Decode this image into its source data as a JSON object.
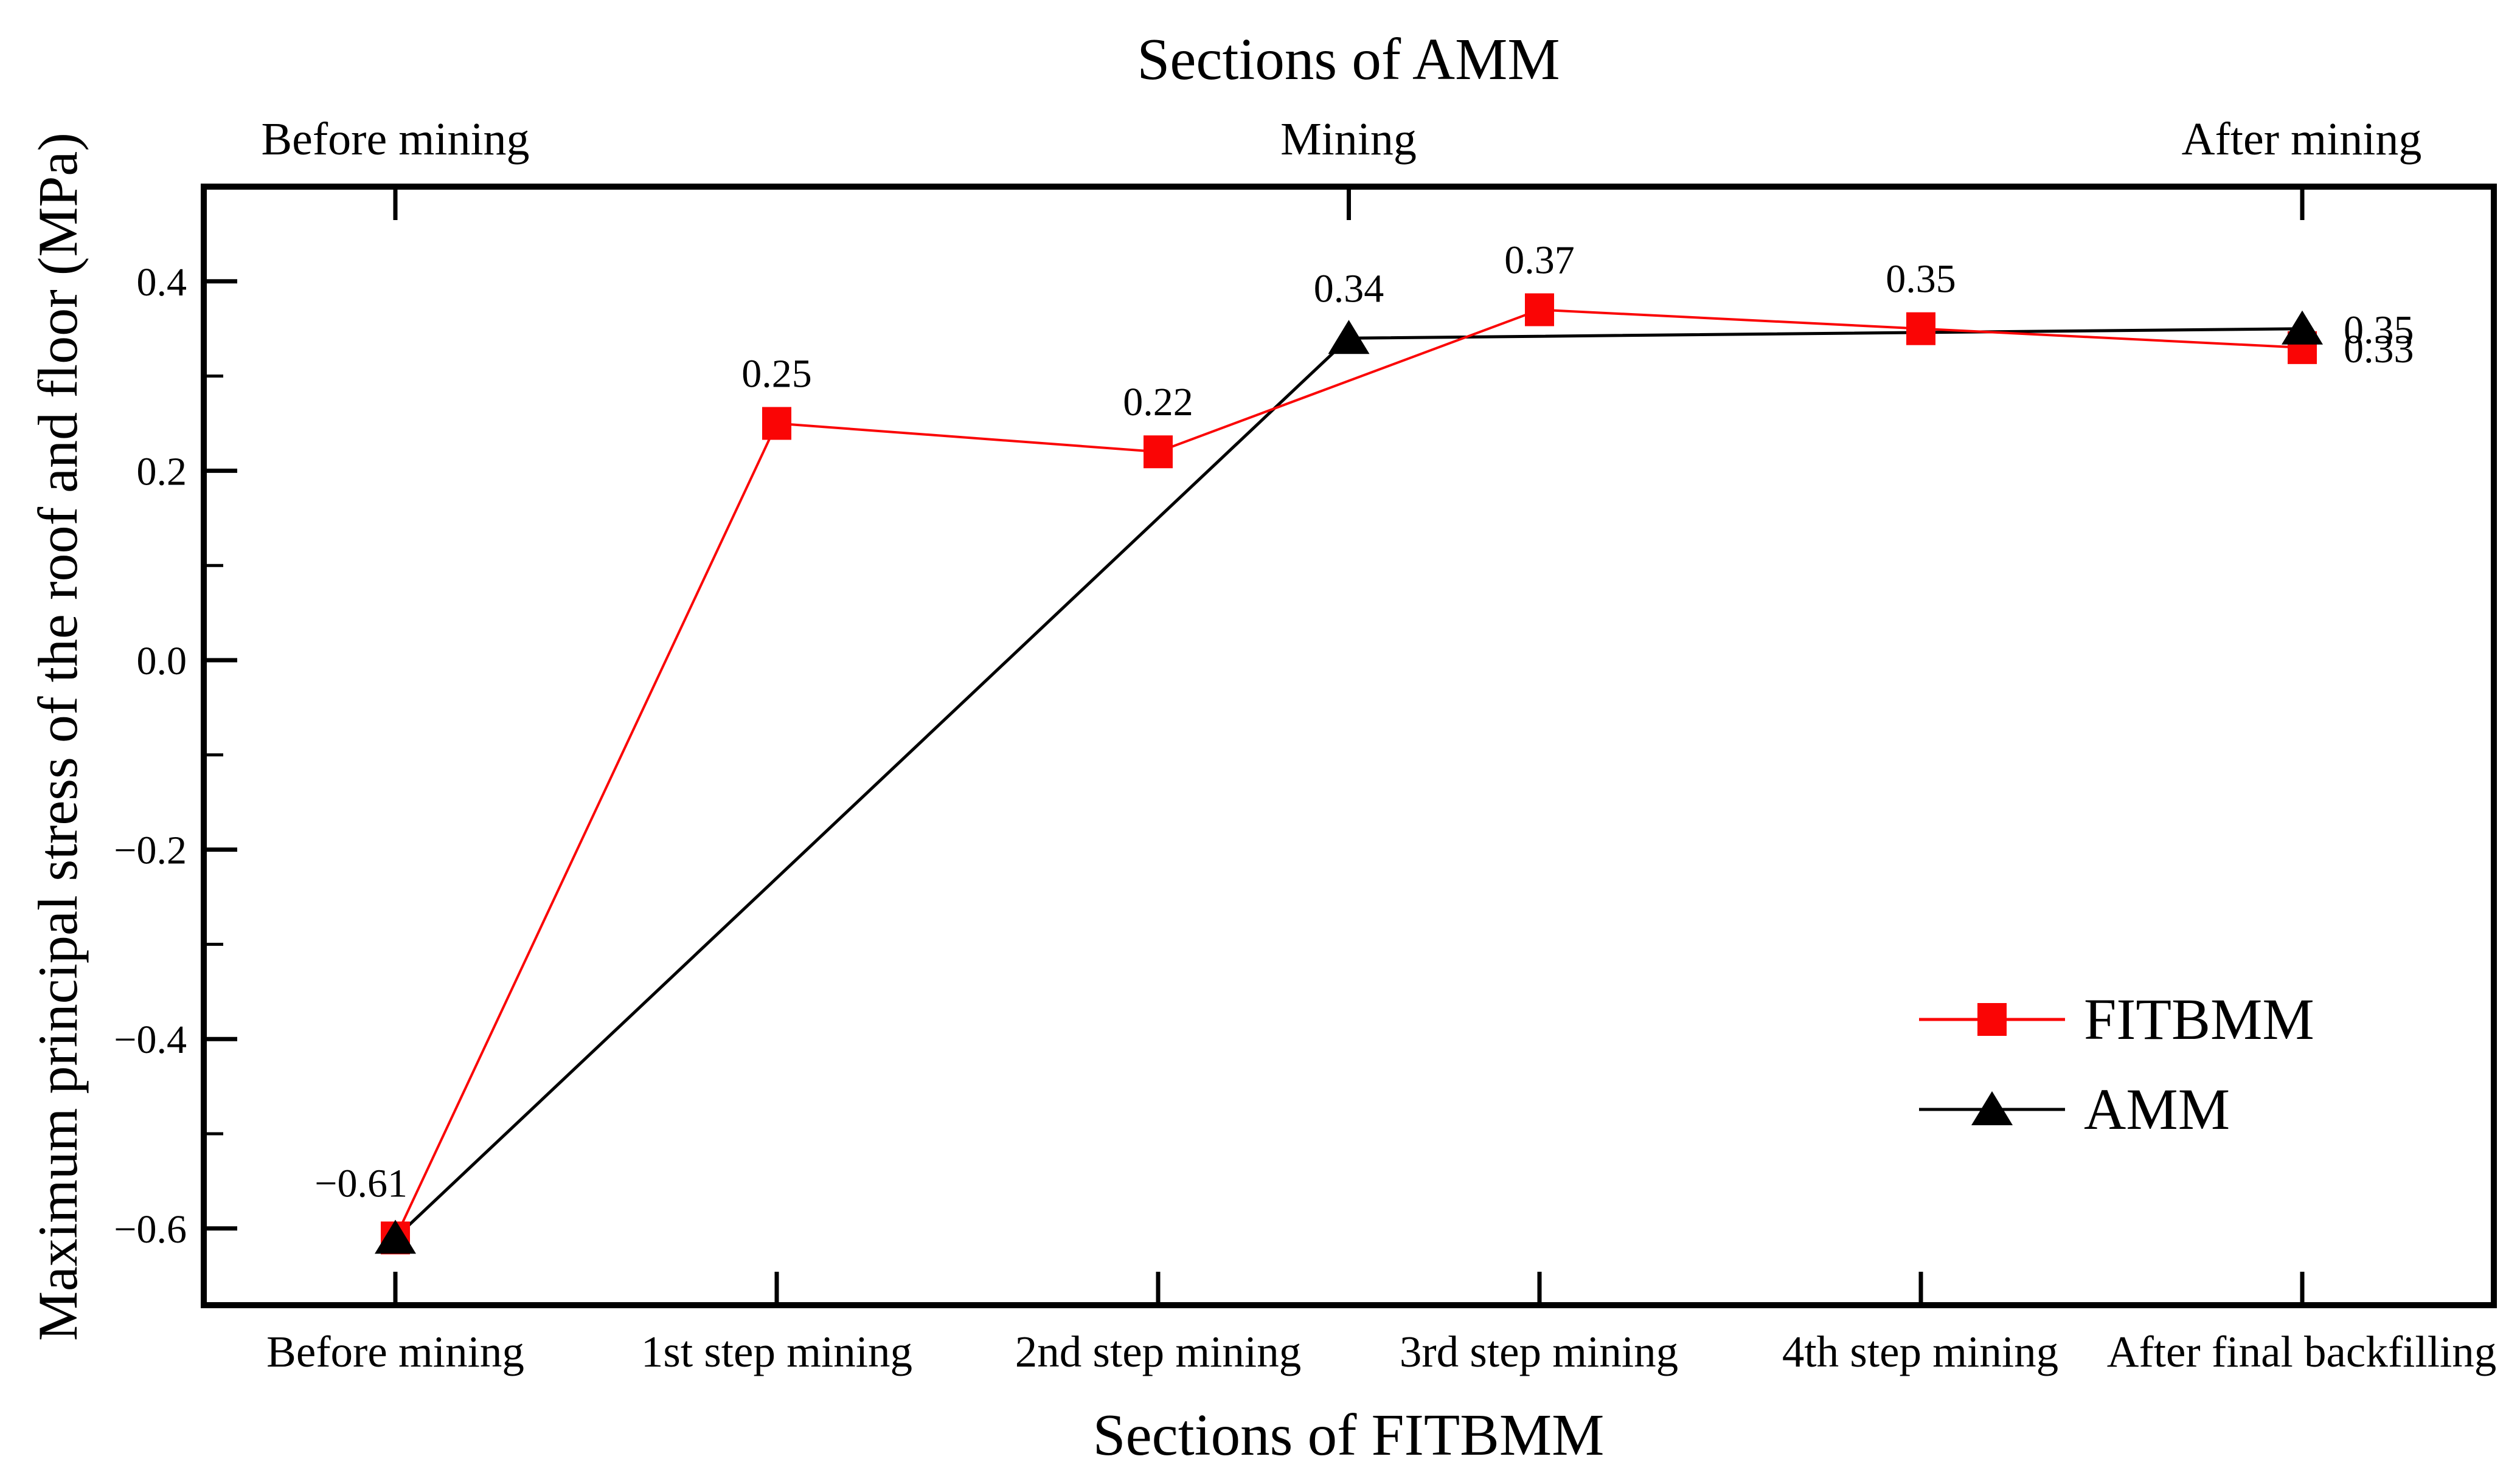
{
  "chart_data": {
    "type": "line",
    "title": "Sections of AMM",
    "xlabel": "Sections of FITBMM",
    "ylabel": "Maximum principal stress of the roof and floor (MPa)",
    "categories": [
      "Before mining",
      "1st step mining",
      "2nd step mining",
      "3rd step mining",
      "4th step mining",
      "After final backfilling"
    ],
    "top_axis_labels": [
      {
        "text": "Before mining",
        "x": 0
      },
      {
        "text": "Mining",
        "x": 2.5
      },
      {
        "text": "After mining",
        "x": 5
      }
    ],
    "ylim": [
      -0.68,
      0.5
    ],
    "yticks": [
      {
        "v": 0.4,
        "label": "0.4"
      },
      {
        "v": 0.2,
        "label": "0.2"
      },
      {
        "v": 0.0,
        "label": "0.0"
      },
      {
        "v": -0.2,
        "label": "−0.2"
      },
      {
        "v": -0.4,
        "label": "−0.4"
      },
      {
        "v": -0.6,
        "label": "−0.6"
      }
    ],
    "yticks_minor": [
      0.3,
      0.1,
      -0.1,
      -0.3,
      -0.5
    ],
    "grid": "off",
    "legend_position": "inside-lower-right",
    "colors": {
      "fitbmm_red": "#fa0505",
      "amm_black": "#000000"
    },
    "series": [
      {
        "name": "FITBMM",
        "color": "#fa0505",
        "marker": "square",
        "points": [
          {
            "x": 0,
            "y": -0.61,
            "label": "−0.61",
            "label_side": "above-left"
          },
          {
            "x": 1,
            "y": 0.25,
            "label": "0.25",
            "label_side": "above"
          },
          {
            "x": 2,
            "y": 0.22,
            "label": "0.22",
            "label_side": "above"
          },
          {
            "x": 3,
            "y": 0.37,
            "label": "0.37",
            "label_side": "above"
          },
          {
            "x": 4,
            "y": 0.35,
            "label": "0.35",
            "label_side": "above"
          },
          {
            "x": 5,
            "y": 0.33,
            "label": "0.33",
            "label_side": "right"
          }
        ]
      },
      {
        "name": "AMM",
        "color": "#000000",
        "marker": "triangle",
        "points": [
          {
            "x": 0,
            "y": -0.61,
            "label": "",
            "label_side": "none"
          },
          {
            "x": 2.5,
            "y": 0.34,
            "label": "0.34",
            "label_side": "above"
          },
          {
            "x": 5,
            "y": 0.35,
            "label": "0.35",
            "label_side": "right"
          }
        ]
      }
    ]
  }
}
